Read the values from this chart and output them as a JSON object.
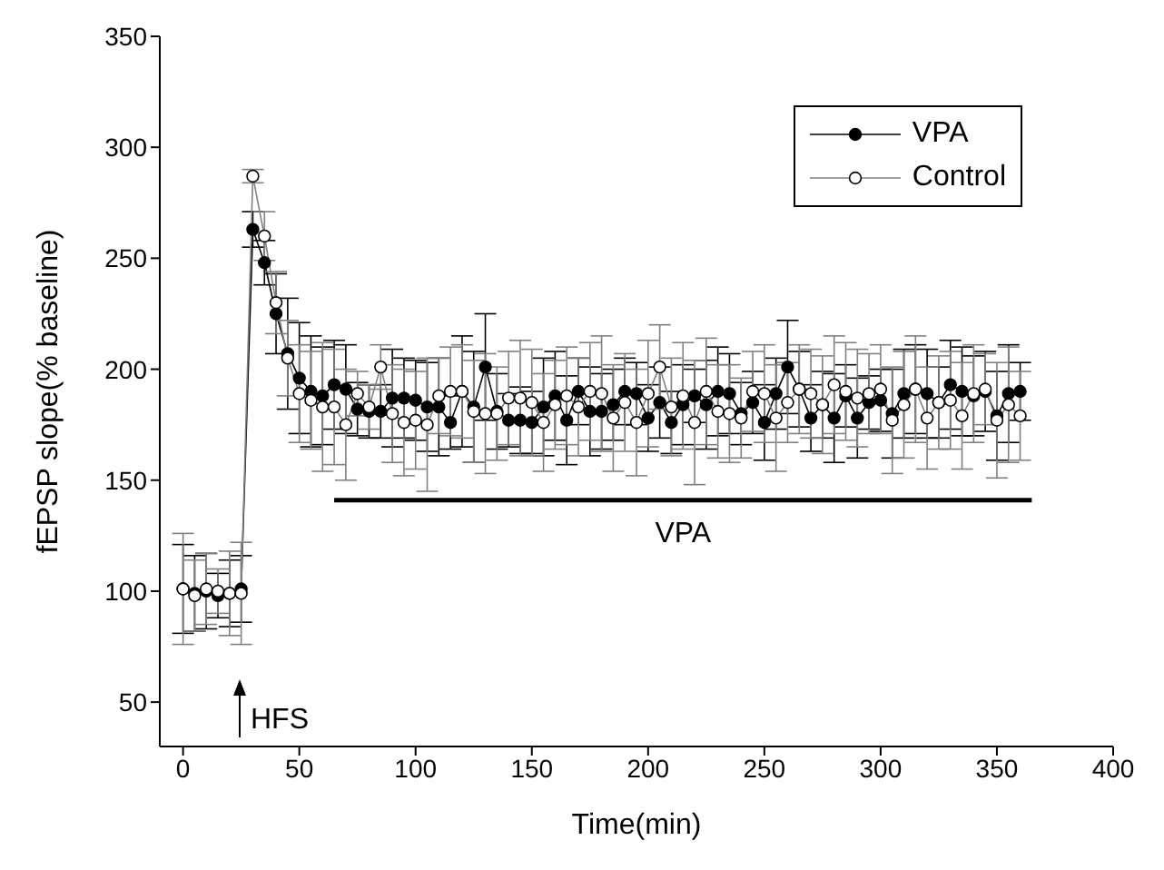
{
  "chart_data": {
    "type": "line",
    "xlabel": "Time(min)",
    "ylabel": "fEPSP slope(% baseline)",
    "x": [
      0,
      5,
      10,
      15,
      20,
      25,
      30,
      35,
      40,
      45,
      50,
      55,
      60,
      65,
      70,
      75,
      80,
      85,
      90,
      95,
      100,
      105,
      110,
      115,
      120,
      125,
      130,
      135,
      140,
      145,
      150,
      155,
      160,
      165,
      170,
      175,
      180,
      185,
      190,
      195,
      200,
      205,
      210,
      215,
      220,
      225,
      230,
      235,
      240,
      245,
      250,
      255,
      260,
      265,
      270,
      275,
      280,
      285,
      290,
      295,
      300,
      305,
      310,
      315,
      320,
      325,
      330,
      335,
      340,
      345,
      350,
      355,
      360
    ],
    "series": [
      {
        "name": "VPA",
        "color": "#000000",
        "marker": "circle",
        "values": [
          101,
          99,
          100,
          98,
          99,
          101,
          263,
          248,
          225,
          207,
          196,
          190,
          188,
          193,
          191,
          182,
          181,
          181,
          187,
          187,
          186,
          183,
          183,
          176,
          190,
          183,
          201,
          181,
          177,
          177,
          176,
          183,
          188,
          177,
          190,
          181,
          181,
          184,
          190,
          189,
          178,
          185,
          176,
          184,
          188,
          184,
          190,
          189,
          180,
          185,
          176,
          189,
          201,
          191,
          178,
          184,
          178,
          188,
          178,
          185,
          186,
          180,
          189,
          191,
          189,
          185,
          193,
          190,
          188,
          190,
          179,
          189,
          190
        ],
        "errors": [
          20,
          17,
          17,
          10,
          15,
          15,
          8,
          10,
          18,
          25,
          25,
          25,
          22,
          20,
          20,
          12,
          12,
          12,
          22,
          18,
          18,
          20,
          22,
          12,
          25,
          25,
          24,
          17,
          12,
          15,
          14,
          22,
          20,
          20,
          15,
          20,
          17,
          16,
          15,
          14,
          15,
          16,
          14,
          18,
          12,
          20,
          20,
          18,
          14,
          14,
          17,
          16,
          21,
          17,
          15,
          15,
          20,
          14,
          18,
          12,
          14,
          20,
          20,
          20,
          20,
          16,
          20,
          20,
          18,
          18,
          20,
          22,
          13
        ]
      },
      {
        "name": "Control",
        "color": "#808080",
        "marker": "circle",
        "values": [
          101,
          98,
          101,
          100,
          99,
          99,
          287,
          260,
          230,
          205,
          189,
          186,
          183,
          183,
          175,
          189,
          183,
          201,
          180,
          176,
          177,
          175,
          188,
          190,
          190,
          181,
          180,
          180,
          187,
          187,
          185,
          176,
          184,
          188,
          183,
          190,
          189,
          178,
          185,
          176,
          189,
          201,
          183,
          188,
          176,
          190,
          181,
          180,
          178,
          190,
          189,
          178,
          185,
          191,
          189,
          184,
          193,
          190,
          187,
          189,
          191,
          177,
          184,
          191,
          178,
          185,
          186,
          179,
          189,
          191,
          177,
          184,
          179
        ],
        "errors": [
          25,
          16,
          16,
          10,
          19,
          23,
          3,
          11,
          14,
          17,
          22,
          22,
          29,
          26,
          25,
          10,
          10,
          10,
          22,
          24,
          22,
          30,
          17,
          20,
          21,
          23,
          27,
          21,
          21,
          26,
          24,
          22,
          20,
          22,
          22,
          22,
          26,
          24,
          22,
          24,
          24,
          19,
          22,
          24,
          28,
          24,
          21,
          22,
          18,
          18,
          22,
          24,
          18,
          20,
          20,
          22,
          22,
          22,
          22,
          18,
          20,
          24,
          24,
          24,
          23,
          21,
          22,
          24,
          22,
          16,
          26,
          26,
          20
        ]
      },
      {
        "name": "VPA",
        "type": "line",
        "color": "#000000",
        "marker": "none",
        "x": [
          65,
          365
        ],
        "values": [
          141,
          141
        ]
      }
    ],
    "xlim": [
      -10,
      400
    ],
    "xticks": [
      0,
      50,
      100,
      150,
      200,
      250,
      300,
      350,
      400
    ],
    "ylim": [
      30,
      350
    ],
    "yticks": [
      50,
      100,
      150,
      200,
      250,
      300,
      350
    ],
    "grid": false,
    "legend": "top right",
    "annotations": [
      "HFS"
    ]
  }
}
